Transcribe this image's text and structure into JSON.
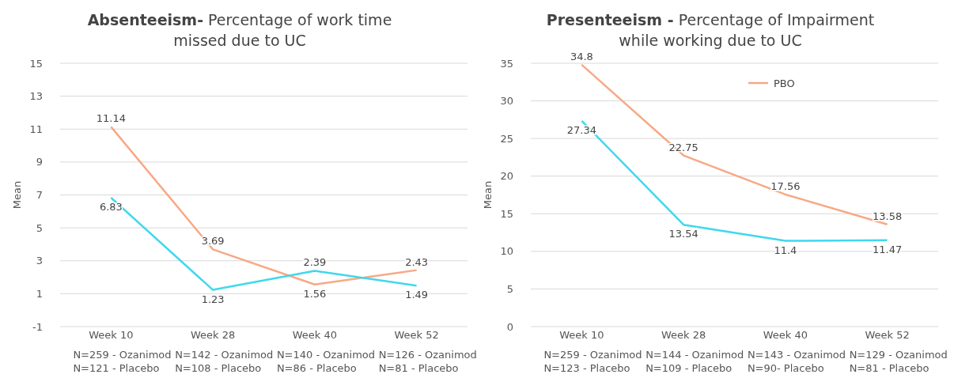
{
  "chart_data": [
    {
      "type": "line",
      "title": "Absenteeism-",
      "subtitle": "Percentage of work time missed due to UC",
      "ylabel": "Mean",
      "categories": [
        "Week 10",
        "Week 28",
        "Week 40",
        "Week 52"
      ],
      "series": [
        {
          "color": "#f7a984",
          "values": [
            11.14,
            3.69,
            1.56,
            2.43
          ]
        },
        {
          "color": "#3fd8ee",
          "values": [
            6.83,
            1.23,
            2.39,
            1.49
          ]
        }
      ],
      "ylim": [
        -1,
        15
      ],
      "yticks": [
        -1,
        1,
        3,
        5,
        7,
        9,
        11,
        13,
        15
      ],
      "grid": "y",
      "data_labels": true,
      "legend": false,
      "annotations": [
        "N=259 - Ozanimod\nN=121 - Placebo",
        "N=142 - Ozanimod\nN=108 - Placebo",
        "N=140 - Ozanimod\nN=86 - Placebo",
        "N=126 - Ozanimod\nN=81 - Placebo"
      ]
    },
    {
      "type": "line",
      "title": "Presenteeism -",
      "subtitle": "Percentage of Impairment while working due to UC",
      "ylabel": "Mean",
      "categories": [
        "Week 10",
        "Week 28",
        "Week 40",
        "Week 52"
      ],
      "series": [
        {
          "name": "PBO",
          "color": "#f7a984",
          "values": [
            34.8,
            22.75,
            17.56,
            13.58
          ]
        },
        {
          "color": "#3fd8ee",
          "values": [
            27.34,
            13.54,
            11.4,
            11.47
          ]
        }
      ],
      "ylim": [
        0,
        35
      ],
      "yticks": [
        0,
        5,
        10,
        15,
        20,
        25,
        30,
        35
      ],
      "grid": "y",
      "data_labels": true,
      "legend": "top right",
      "annotations": [
        "N=259 - Ozanimod\nN=123 - Placebo",
        "N=144 - Ozanimod\nN=109 - Placebo",
        "N=143 - Ozanimod\nN=90- Placebo",
        "N=129 - Ozanimod\nN=81 - Placebo"
      ]
    }
  ]
}
